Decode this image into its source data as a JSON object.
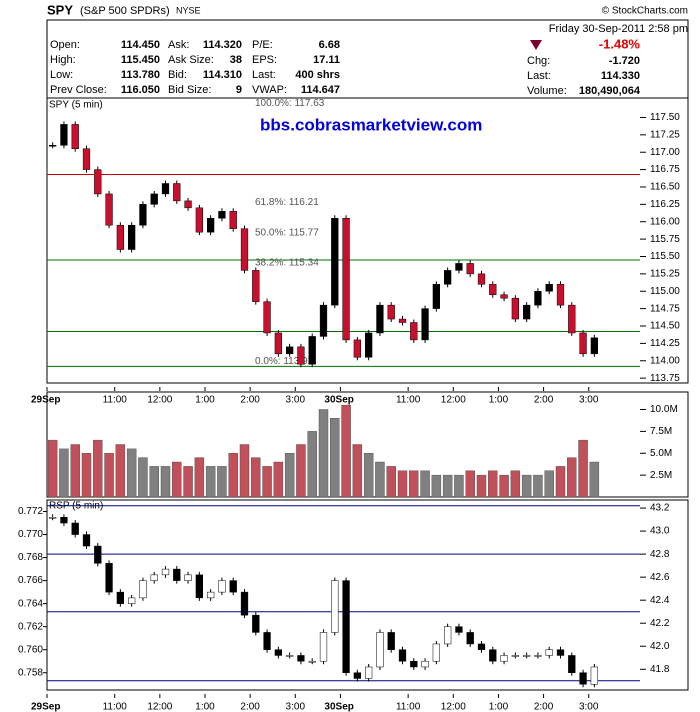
{
  "header": {
    "symbol": "SPY",
    "name": "(S&P 500 SPDRs)",
    "exchange": "NYSE",
    "credit": "© StockCharts.com",
    "date": "Friday  30-Sep-2011  2:58 pm",
    "fields": [
      [
        "Open:",
        "114.450",
        "Ask:",
        "114.320",
        "P/E:",
        "6.68"
      ],
      [
        "High:",
        "115.450",
        "Ask Size:",
        "38",
        "EPS:",
        "17.11"
      ],
      [
        "Low:",
        "113.780",
        "Bid:",
        "114.310",
        "Last:",
        "400 shrs"
      ],
      [
        "Prev Close:",
        "116.050",
        "Bid Size:",
        "9",
        "VWAP:",
        "114.647"
      ]
    ],
    "change_pct": "-1.48%",
    "summary": [
      [
        "Chg:",
        "-1.720"
      ],
      [
        "Last:",
        "114.330"
      ],
      [
        "Volume:",
        "180,490,064"
      ]
    ],
    "watermark": "bbs.cobrasmarketview.com"
  },
  "chart_data": [
    {
      "type": "candlestick",
      "title": "SPY (5 min)",
      "categories": [
        "29Sep",
        null,
        null,
        null,
        null,
        null,
        "11:00",
        null,
        null,
        null,
        "12:00",
        null,
        null,
        null,
        "1:00",
        null,
        null,
        null,
        "2:00",
        null,
        null,
        null,
        "3:00",
        null,
        null,
        null,
        "30Sep",
        null,
        null,
        null,
        null,
        null,
        "11:00",
        null,
        null,
        null,
        "12:00",
        null,
        null,
        null,
        "1:00",
        null,
        null,
        null,
        "2:00",
        null,
        null,
        null,
        "3:00"
      ],
      "series": [
        {
          "name": "SPY",
          "color": "#c8102e",
          "values": [
            117.1,
            117.4,
            117.05,
            116.75,
            116.4,
            115.95,
            115.6,
            115.95,
            116.25,
            116.4,
            116.55,
            116.3,
            116.2,
            115.85,
            116.05,
            116.15,
            115.9,
            115.3,
            114.85,
            114.4,
            114.1,
            114.2,
            113.95,
            114.35,
            114.8,
            116.05,
            114.3,
            114.05,
            114.4,
            114.8,
            114.6,
            114.55,
            114.3,
            114.75,
            115.1,
            115.3,
            115.4,
            115.25,
            115.1,
            114.95,
            114.9,
            114.6,
            114.8,
            115.0,
            115.1,
            114.8,
            114.4,
            114.1,
            114.33
          ]
        }
      ],
      "ylim": [
        113.68,
        117.78
      ],
      "yticks": [
        {
          "value": 113.75,
          "label": "113.75"
        },
        {
          "value": 114,
          "label": "114.00"
        },
        {
          "value": 114.25,
          "label": "114.25"
        },
        {
          "value": 114.5,
          "label": "114.50"
        },
        {
          "value": 114.75,
          "label": "114.75"
        },
        {
          "value": 115,
          "label": "115.00"
        },
        {
          "value": 115.25,
          "label": "115.25"
        },
        {
          "value": 115.5,
          "label": "115.50"
        },
        {
          "value": 115.75,
          "label": "115.75"
        },
        {
          "value": 116,
          "label": "116.00"
        },
        {
          "value": 116.25,
          "label": "116.25"
        },
        {
          "value": 116.5,
          "label": "116.50"
        },
        {
          "value": 116.75,
          "label": "116.75"
        },
        {
          "value": 117,
          "label": "117.00"
        },
        {
          "value": 117.25,
          "label": "117.25"
        },
        {
          "value": 117.5,
          "label": "117.50"
        }
      ],
      "levels": [
        {
          "value": 116.68,
          "color": "#c00000"
        },
        {
          "value": 115.45,
          "color": "#007000"
        },
        {
          "value": 114.42,
          "color": "#007000"
        },
        {
          "value": 113.92,
          "color": "#007000"
        }
      ],
      "annotations": [
        {
          "value": 117.63,
          "label": "100.0%: 117.63"
        },
        {
          "value": 116.21,
          "label": "61.8%: 116.21"
        },
        {
          "value": 115.77,
          "label": "50.0%: 115.77"
        },
        {
          "value": 115.34,
          "label": "38.2%: 115.34"
        },
        {
          "value": 113.92,
          "label": "0.0%: 113.92"
        }
      ]
    },
    {
      "type": "bar",
      "title": "Volume",
      "series": [
        {
          "name": "Volume",
          "color": "#c0505a",
          "values": [
            6.5,
            5.5,
            6,
            5,
            6.5,
            5,
            6,
            5.5,
            4.5,
            3.5,
            3.5,
            4,
            3.5,
            4.5,
            3.5,
            3.5,
            5,
            6,
            4.5,
            3.5,
            4,
            5,
            6,
            7.5,
            10,
            9,
            10.5,
            6,
            5,
            4,
            3.5,
            3,
            3,
            3,
            2.5,
            2.5,
            2.5,
            3,
            2.5,
            3,
            2.5,
            3,
            2.5,
            2.5,
            3,
            3.5,
            4.5,
            6.5,
            4
          ]
        }
      ],
      "ylim": [
        0,
        12
      ],
      "yticks": [
        {
          "value": 2.5,
          "label": "2.5M"
        },
        {
          "value": 5,
          "label": "5.0M"
        },
        {
          "value": 7.5,
          "label": "7.5M"
        },
        {
          "value": 10,
          "label": "10.0M"
        }
      ]
    },
    {
      "type": "candlestick",
      "title": "RSP (5 min)",
      "series": [
        {
          "name": "RSP",
          "color": "#000000",
          "values": [
            0.7715,
            0.771,
            0.77,
            0.769,
            0.7675,
            0.765,
            0.764,
            0.7645,
            0.766,
            0.7665,
            0.767,
            0.766,
            0.7665,
            0.7645,
            0.765,
            0.766,
            0.765,
            0.763,
            0.7615,
            0.76,
            0.7595,
            0.7595,
            0.759,
            0.759,
            0.7615,
            0.766,
            0.758,
            0.7575,
            0.7585,
            0.7615,
            0.76,
            0.759,
            0.7585,
            0.759,
            0.7605,
            0.762,
            0.7615,
            0.7605,
            0.76,
            0.759,
            0.7595,
            0.7595,
            0.7595,
            0.7595,
            0.76,
            0.7595,
            0.758,
            0.757,
            0.7585
          ]
        }
      ],
      "ylim": [
        0.7565,
        0.773
      ],
      "yticks": [
        0.758,
        {
          "value": 0.76,
          "label": "0.760"
        },
        0.762,
        0.764,
        0.766,
        0.768,
        {
          "value": 0.77,
          "label": "0.770"
        },
        0.772
      ],
      "y2lim": [
        41.62,
        43.27
      ],
      "y2ticks": [
        41.8,
        {
          "value": 42,
          "label": "42.0"
        },
        42.2,
        42.4,
        42.6,
        42.8,
        {
          "value": 43,
          "label": "43.0"
        },
        43.2
      ],
      "levels": [
        {
          "value": 43.22,
          "color": "#000080"
        },
        {
          "value": 42.8,
          "color": "#000080"
        },
        {
          "value": 42.3,
          "color": "#000080"
        },
        {
          "value": 41.7,
          "color": "#000080"
        }
      ]
    }
  ]
}
